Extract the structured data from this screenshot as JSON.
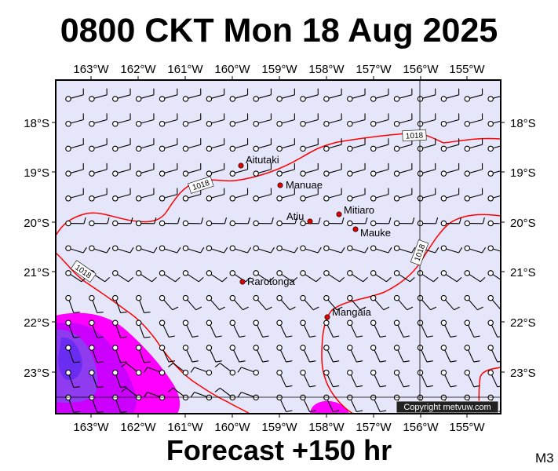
{
  "title": "0800 CKT Mon 18 Aug 2025",
  "subtitle": "Forecast +150 hr",
  "corner_label": "M3",
  "copyright": "Copyright metvuw.com",
  "colors": {
    "ocean": "#e6e6fa",
    "isobar": "#ff0000",
    "rain_light": "#ff00ff",
    "rain_mid": "#b400ff",
    "rain_heavy": "#6a2cf0",
    "town_dot": "#e00000"
  },
  "longitude_labels": [
    "163°W",
    "162°W",
    "161°W",
    "160°W",
    "159°W",
    "158°W",
    "157°W",
    "156°W",
    "155°W"
  ],
  "latitude_labels": [
    "18°S",
    "19°S",
    "20°S",
    "21°S",
    "22°S",
    "23°S"
  ],
  "isobar_labels": [
    "1018",
    "1018",
    "1018",
    "1018"
  ],
  "places": [
    {
      "name": "Aitutaki"
    },
    {
      "name": "Manuae"
    },
    {
      "name": "Mitiaro"
    },
    {
      "name": "Atiu"
    },
    {
      "name": "Mauke"
    },
    {
      "name": "Rarotonga"
    },
    {
      "name": "Mangaia"
    }
  ],
  "icons": [
    "wind-barb-icon",
    "town-marker-icon"
  ]
}
